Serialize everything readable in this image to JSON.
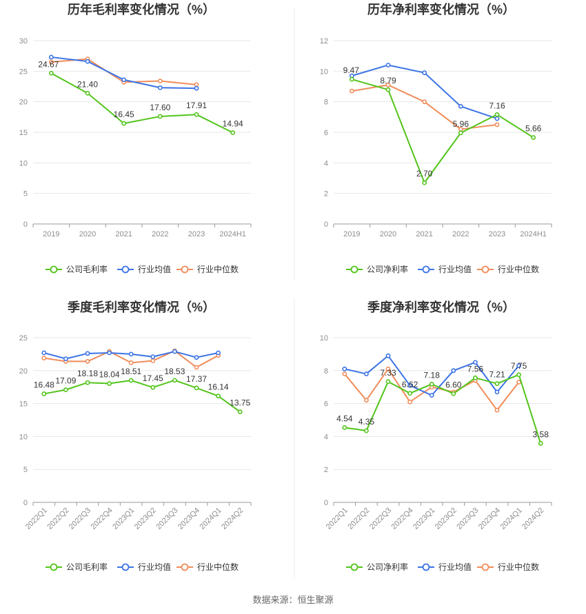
{
  "source": "数据来源：恒生聚源",
  "colors": {
    "company": "#52c41a",
    "industry_avg": "#3b73e6",
    "industry_median": "#f08c5a"
  },
  "chart_data": [
    {
      "type": "line",
      "title": "历年毛利率变化情况（%）",
      "categories": [
        "2019",
        "2020",
        "2021",
        "2022",
        "2023",
        "2024H1"
      ],
      "ylim": [
        0,
        30
      ],
      "yticks": [
        0,
        5,
        10,
        15,
        20,
        25,
        30
      ],
      "grid": true,
      "legend_position": "bottom",
      "series": [
        {
          "name": "公司毛利率",
          "key": "company",
          "values": [
            24.67,
            21.4,
            16.45,
            17.6,
            17.91,
            14.94
          ],
          "labels": [
            "24.67",
            "21.40",
            "16.45",
            "17.60",
            "17.91",
            "14.94"
          ]
        },
        {
          "name": "行业均值",
          "key": "industry_avg",
          "values": [
            27.3,
            26.6,
            23.6,
            22.3,
            22.2,
            null
          ]
        },
        {
          "name": "行业中位数",
          "key": "industry_median",
          "values": [
            26.5,
            27.0,
            23.2,
            23.4,
            22.8,
            null
          ]
        }
      ]
    },
    {
      "type": "line",
      "title": "历年净利率变化情况（%）",
      "categories": [
        "2019",
        "2020",
        "2021",
        "2022",
        "2023",
        "2024H1"
      ],
      "ylim": [
        0,
        12
      ],
      "yticks": [
        0,
        2,
        4,
        6,
        8,
        10,
        12
      ],
      "grid": true,
      "legend_position": "bottom",
      "series": [
        {
          "name": "公司净利率",
          "key": "company",
          "values": [
            9.47,
            8.79,
            2.7,
            5.96,
            7.16,
            5.66
          ],
          "labels": [
            "9.47",
            "8.79",
            "2.70",
            "5.96",
            "7.16",
            "5.66"
          ]
        },
        {
          "name": "行业均值",
          "key": "industry_avg",
          "values": [
            9.7,
            10.4,
            9.9,
            7.7,
            6.9,
            null
          ]
        },
        {
          "name": "行业中位数",
          "key": "industry_median",
          "values": [
            8.7,
            9.1,
            8.0,
            6.2,
            6.5,
            null
          ]
        }
      ]
    },
    {
      "type": "line",
      "title": "季度毛利率变化情况（%）",
      "categories": [
        "2022Q1",
        "2022Q2",
        "2022Q3",
        "2022Q4",
        "2023Q1",
        "2023Q2",
        "2023Q3",
        "2023Q4",
        "2024Q1",
        "2024Q2"
      ],
      "ylim": [
        0,
        25
      ],
      "yticks": [
        0,
        5,
        10,
        15,
        20,
        25
      ],
      "grid": true,
      "legend_position": "bottom",
      "series": [
        {
          "name": "公司毛利率",
          "key": "company",
          "values": [
            16.48,
            17.09,
            18.18,
            18.04,
            18.51,
            17.45,
            18.53,
            17.37,
            16.14,
            13.75
          ],
          "labels": [
            "16.48",
            "17.09",
            "18.18",
            "18.04",
            "18.51",
            "17.45",
            "18.53",
            "17.37",
            "16.14",
            "13.75"
          ]
        },
        {
          "name": "行业均值",
          "key": "industry_avg",
          "values": [
            22.7,
            21.8,
            22.6,
            22.7,
            22.5,
            22.1,
            22.9,
            22.0,
            22.7,
            null
          ]
        },
        {
          "name": "行业中位数",
          "key": "industry_median",
          "values": [
            21.9,
            21.4,
            21.4,
            22.9,
            21.2,
            21.5,
            23.0,
            20.5,
            22.3,
            null
          ]
        }
      ]
    },
    {
      "type": "line",
      "title": "季度净利率变化情况（%）",
      "categories": [
        "2022Q1",
        "2022Q2",
        "2022Q3",
        "2022Q4",
        "2023Q1",
        "2023Q2",
        "2023Q3",
        "2023Q4",
        "2024Q1",
        "2024Q2"
      ],
      "ylim": [
        0,
        10
      ],
      "yticks": [
        0,
        2,
        4,
        6,
        8,
        10
      ],
      "grid": true,
      "legend_position": "bottom",
      "series": [
        {
          "name": "公司净利率",
          "key": "company",
          "values": [
            4.54,
            4.35,
            7.33,
            6.62,
            7.18,
            6.6,
            7.56,
            7.21,
            7.75,
            3.58
          ],
          "labels": [
            "4.54",
            "4.35",
            "7.33",
            "6.62",
            "7.18",
            "6.60",
            "7.56",
            "7.21",
            "7.75",
            "3.58"
          ]
        },
        {
          "name": "行业均值",
          "key": "industry_avg",
          "values": [
            8.1,
            7.8,
            8.9,
            7.1,
            6.5,
            8.0,
            8.5,
            6.7,
            8.3,
            null
          ]
        },
        {
          "name": "行业中位数",
          "key": "industry_median",
          "values": [
            7.8,
            6.2,
            8.1,
            6.1,
            7.0,
            6.7,
            7.4,
            5.6,
            7.3,
            null
          ]
        }
      ]
    }
  ]
}
